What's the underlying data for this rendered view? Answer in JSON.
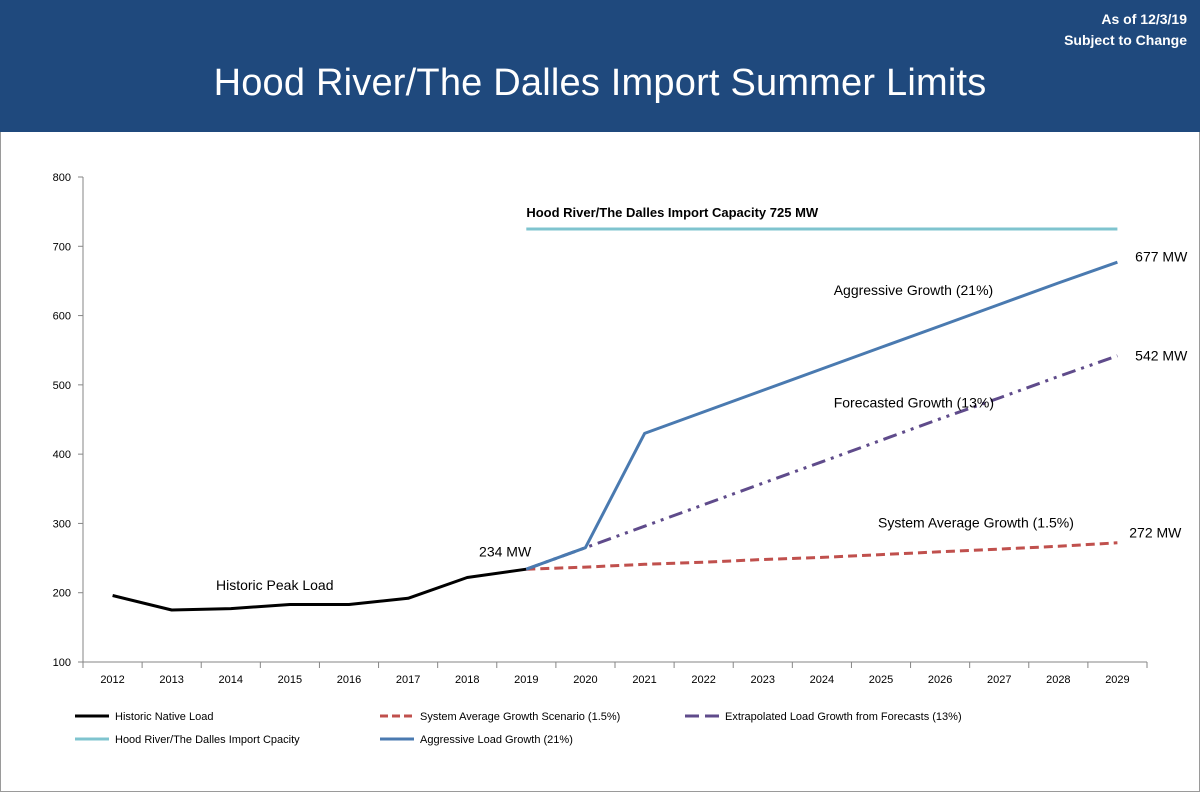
{
  "header": {
    "title": "Hood River/The Dalles Import Summer Limits",
    "as_of": "As of 12/3/19",
    "subject": "Subject to Change",
    "background": "#1f497d"
  },
  "chart_data": {
    "type": "line",
    "title": "Hood River/The Dalles Import Summer Limits",
    "xlabel": "",
    "ylabel": "",
    "x": [
      2012,
      2013,
      2014,
      2015,
      2016,
      2017,
      2018,
      2019,
      2020,
      2021,
      2022,
      2023,
      2024,
      2025,
      2026,
      2027,
      2028,
      2029
    ],
    "ylim": [
      100,
      800
    ],
    "yticks": [
      100,
      200,
      300,
      400,
      500,
      600,
      700,
      800
    ],
    "grid": false,
    "legend_position": "bottom",
    "series": [
      {
        "key": "historic",
        "name": "Historic Native Load",
        "color": "#000000",
        "dash": "solid",
        "x": [
          2012,
          2013,
          2014,
          2015,
          2016,
          2017,
          2018,
          2019
        ],
        "values": [
          196,
          175,
          177,
          183,
          183,
          192,
          222,
          234
        ]
      },
      {
        "key": "system_avg",
        "name": "System Average Growth Scenario (1.5%)",
        "color": "#c0504d",
        "dash": "dash",
        "x": [
          2019,
          2020,
          2021,
          2022,
          2023,
          2024,
          2025,
          2026,
          2027,
          2028,
          2029
        ],
        "values": [
          234,
          237,
          241,
          244,
          248,
          251,
          255,
          259,
          263,
          267,
          272
        ]
      },
      {
        "key": "extrapolated",
        "name": "Extrapolated Load Growth from Forecasts (13%)",
        "color": "#5f4b8b",
        "dash": "dashdotdot",
        "x": [
          2019,
          2020,
          2021,
          2022,
          2023,
          2024,
          2025,
          2026,
          2027,
          2028,
          2029
        ],
        "values": [
          234,
          265,
          296,
          327,
          358,
          389,
          420,
          451,
          481,
          512,
          542
        ]
      },
      {
        "key": "capacity",
        "name": "Hood River/The Dalles Import Cpacity",
        "color": "#7fc4cf",
        "dash": "solid",
        "x": [
          2019,
          2029
        ],
        "values": [
          725,
          725
        ]
      },
      {
        "key": "aggressive",
        "name": "Aggressive Load Growth (21%)",
        "color": "#4a7ab0",
        "dash": "solid",
        "x": [
          2019,
          2020,
          2021,
          2022,
          2023,
          2024,
          2025,
          2026,
          2027,
          2028,
          2029
        ],
        "values": [
          234,
          265,
          430,
          461,
          492,
          523,
          554,
          585,
          616,
          647,
          677
        ]
      }
    ],
    "annotations": [
      {
        "key": "capacity_label",
        "text": "Hood River/The Dalles Import Capacity 725  MW",
        "x": 2019,
        "y": 742,
        "bold": true,
        "anchor": "start",
        "size": 13
      },
      {
        "key": "aggressive_label",
        "text": "Aggressive Growth (21%)",
        "x": 2024.2,
        "y": 630,
        "anchor": "start",
        "size": 14
      },
      {
        "key": "forecast_label",
        "text": "Forecasted Growth  (13%)",
        "x": 2024.2,
        "y": 467,
        "anchor": "start",
        "size": 14
      },
      {
        "key": "system_label",
        "text": "System Average Growth  (1.5%)",
        "x": 2024.95,
        "y": 294,
        "anchor": "start",
        "size": 14
      },
      {
        "key": "historic_label",
        "text": "Historic Peak Load",
        "x": 2013.75,
        "y": 204,
        "anchor": "start",
        "size": 14
      },
      {
        "key": "value_234",
        "text": "234 MW",
        "x": 2018.2,
        "y": 252,
        "anchor": "start",
        "size": 14
      },
      {
        "key": "value_677",
        "text": "677 MW",
        "x": 2029.3,
        "y": 678,
        "anchor": "start",
        "size": 14
      },
      {
        "key": "value_542",
        "text": "542 MW",
        "x": 2029.3,
        "y": 535,
        "anchor": "start",
        "size": 14
      },
      {
        "key": "value_272",
        "text": "272 MW",
        "x": 2029.2,
        "y": 280,
        "anchor": "start",
        "size": 14
      }
    ],
    "legend": [
      {
        "key": "historic",
        "label": "Historic Native Load"
      },
      {
        "key": "system_avg",
        "label": "System Average Growth Scenario (1.5%)"
      },
      {
        "key": "extrapolated",
        "label": "Extrapolated Load Growth from Forecasts (13%)"
      },
      {
        "key": "capacity",
        "label": "Hood River/The Dalles Import Cpacity"
      },
      {
        "key": "aggressive",
        "label": "Aggressive Load Growth (21%)"
      }
    ]
  }
}
